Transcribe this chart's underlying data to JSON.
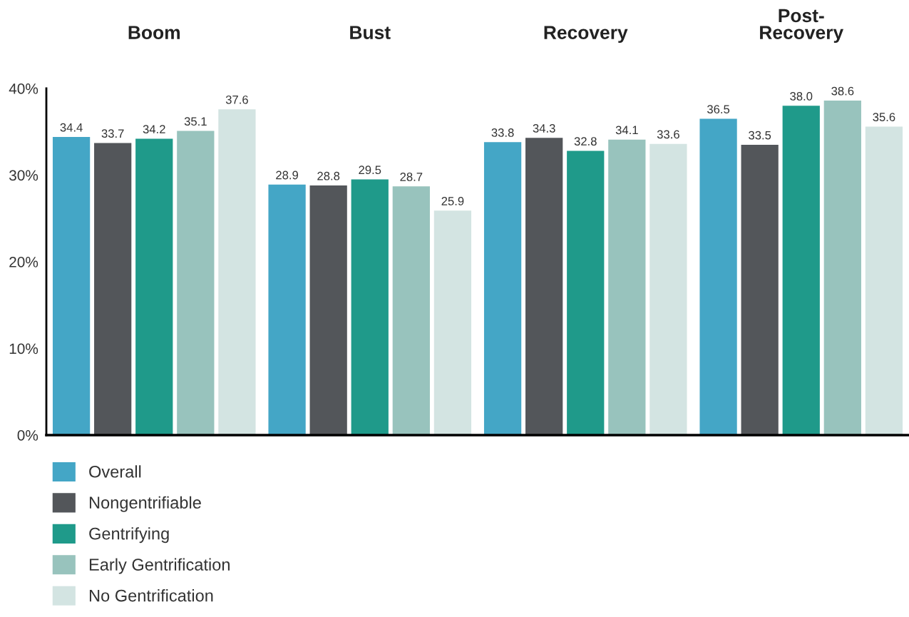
{
  "chart_data": {
    "type": "bar",
    "categories": [
      "Boom",
      "Bust",
      "Recovery",
      "Post-\nRecovery"
    ],
    "series": [
      {
        "name": "Overall",
        "color": "#44a6c6",
        "values": [
          34.4,
          28.9,
          33.8,
          36.5
        ],
        "value_labels": [
          "34.4",
          "28.9",
          "33.8",
          "36.5"
        ]
      },
      {
        "name": "Nongentrifiable",
        "color": "#53565a",
        "values": [
          33.7,
          28.8,
          34.3,
          33.5
        ],
        "value_labels": [
          "33.7",
          "28.8",
          "34.3",
          "33.5"
        ]
      },
      {
        "name": "Gentrifying",
        "color": "#1f9a8a",
        "values": [
          34.2,
          29.5,
          32.8,
          38.0
        ],
        "value_labels": [
          "34.2",
          "29.5",
          "32.8",
          "38.0"
        ]
      },
      {
        "name": "Early Gentrification",
        "color": "#98c3bd",
        "values": [
          35.1,
          28.7,
          34.1,
          38.6
        ],
        "value_labels": [
          "35.1",
          "28.7",
          "34.1",
          "38.6"
        ]
      },
      {
        "name": "No Gentrification",
        "color": "#d3e4e2",
        "values": [
          37.6,
          25.9,
          33.6,
          35.6
        ],
        "value_labels": [
          "37.6",
          "25.9",
          "33.6",
          "35.6"
        ]
      }
    ],
    "ylim": [
      0,
      40
    ],
    "yticks": [
      {
        "value": 0,
        "label": "0%"
      },
      {
        "value": 10,
        "label": "10%"
      },
      {
        "value": 20,
        "label": "20%"
      },
      {
        "value": 30,
        "label": "30%"
      },
      {
        "value": 40,
        "label": "40%"
      }
    ],
    "grid": false,
    "legend": "bottom left"
  }
}
